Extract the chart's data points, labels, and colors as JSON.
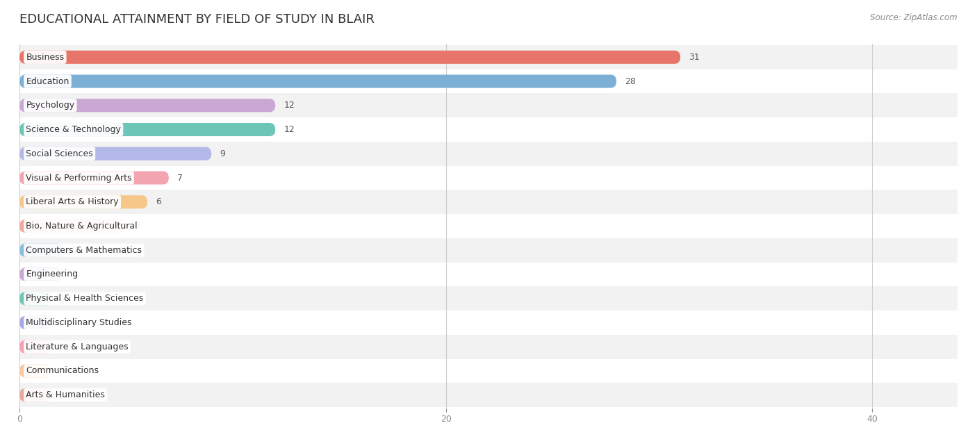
{
  "title": "EDUCATIONAL ATTAINMENT BY FIELD OF STUDY IN BLAIR",
  "source": "Source: ZipAtlas.com",
  "categories": [
    "Business",
    "Education",
    "Psychology",
    "Science & Technology",
    "Social Sciences",
    "Visual & Performing Arts",
    "Liberal Arts & History",
    "Bio, Nature & Agricultural",
    "Computers & Mathematics",
    "Engineering",
    "Physical & Health Sciences",
    "Multidisciplinary Studies",
    "Literature & Languages",
    "Communications",
    "Arts & Humanities"
  ],
  "values": [
    31,
    28,
    12,
    12,
    9,
    7,
    6,
    5,
    2,
    2,
    0,
    0,
    0,
    0,
    0
  ],
  "bar_colors": [
    "#E8756A",
    "#7BAFD4",
    "#C9A8D4",
    "#6DC5B8",
    "#B3B8E8",
    "#F2A5B0",
    "#F5C88A",
    "#F0A898",
    "#88BEE0",
    "#C4A8D8",
    "#6DC5B8",
    "#A8A8E8",
    "#F5A0B5",
    "#F5C8A0",
    "#E8A898"
  ],
  "bg_row_colors": [
    "#F2F2F2",
    "#FFFFFF"
  ],
  "xlim": [
    0,
    44
  ],
  "xticks": [
    0,
    20,
    40
  ],
  "bar_height": 0.55,
  "background_color": "#FFFFFF",
  "title_fontsize": 13,
  "label_fontsize": 9,
  "value_fontsize": 9,
  "tick_fontsize": 9
}
